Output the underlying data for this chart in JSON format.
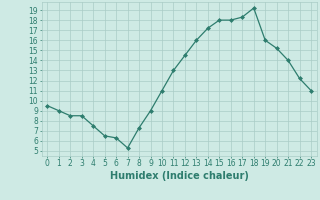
{
  "x": [
    0,
    1,
    2,
    3,
    4,
    5,
    6,
    7,
    8,
    9,
    10,
    11,
    12,
    13,
    14,
    15,
    16,
    17,
    18,
    19,
    20,
    21,
    22,
    23
  ],
  "y": [
    9.5,
    9.0,
    8.5,
    8.5,
    7.5,
    6.5,
    6.3,
    5.3,
    7.3,
    9.0,
    11.0,
    13.0,
    14.5,
    16.0,
    17.2,
    18.0,
    18.0,
    18.3,
    19.2,
    16.0,
    15.2,
    14.0,
    12.2,
    11.0
  ],
  "line_color": "#2e7d6e",
  "marker": "D",
  "markersize": 2.0,
  "linewidth": 0.9,
  "xlabel": "Humidex (Indice chaleur)",
  "xlim": [
    -0.5,
    23.5
  ],
  "ylim": [
    4.5,
    19.8
  ],
  "yticks": [
    5,
    6,
    7,
    8,
    9,
    10,
    11,
    12,
    13,
    14,
    15,
    16,
    17,
    18,
    19
  ],
  "xticks": [
    0,
    1,
    2,
    3,
    4,
    5,
    6,
    7,
    8,
    9,
    10,
    11,
    12,
    13,
    14,
    15,
    16,
    17,
    18,
    19,
    20,
    21,
    22,
    23
  ],
  "background_color": "#ceeae4",
  "grid_color": "#aaccc6",
  "tick_fontsize": 5.5,
  "xlabel_fontsize": 7.0
}
